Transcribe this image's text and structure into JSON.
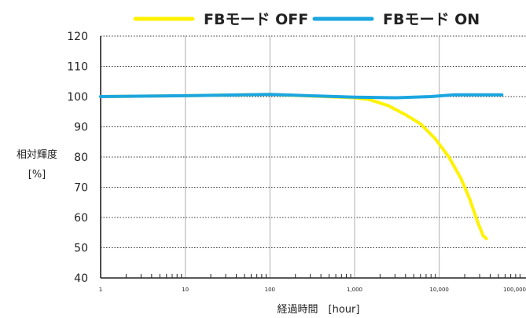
{
  "chart_data": {
    "type": "line",
    "title": "",
    "xlabel": "経過時間　[hour]",
    "ylabel_line1": "相対輝度",
    "ylabel_line2": "[%]",
    "x_scale": "log",
    "xlim": [
      1,
      100000
    ],
    "ylim": [
      40,
      120
    ],
    "x_ticks": [
      1,
      10,
      100,
      1000,
      10000,
      100000
    ],
    "x_tick_labels": [
      "1",
      "10",
      "100",
      "1,000",
      "10,000",
      "100,000"
    ],
    "y_ticks": [
      40,
      50,
      60,
      70,
      80,
      90,
      100,
      110,
      120
    ],
    "y_tick_labels": [
      "40",
      "50",
      "60",
      "70",
      "80",
      "90",
      "100",
      "110",
      "120"
    ],
    "grid": "vertical solid at decades, horizontal dotted",
    "legend_position": "top",
    "series": [
      {
        "name": "FBモード OFF",
        "color": "#fff200",
        "x": [
          1,
          10,
          100,
          1000,
          1500,
          2500,
          4000,
          6000,
          9000,
          13000,
          18000,
          23000,
          28000,
          33000,
          36000
        ],
        "y": [
          100,
          100.3,
          100.7,
          99.6,
          99,
          97,
          94,
          91,
          86,
          80,
          73,
          66,
          59,
          54,
          53
        ]
      },
      {
        "name": "FBモード ON",
        "color": "#1ba6e0",
        "x": [
          1,
          10,
          100,
          1000,
          3000,
          8000,
          15000,
          25000,
          55000
        ],
        "y": [
          100,
          100.3,
          100.7,
          99.8,
          99.6,
          100,
          100.6,
          100.6,
          100.6
        ]
      }
    ]
  }
}
